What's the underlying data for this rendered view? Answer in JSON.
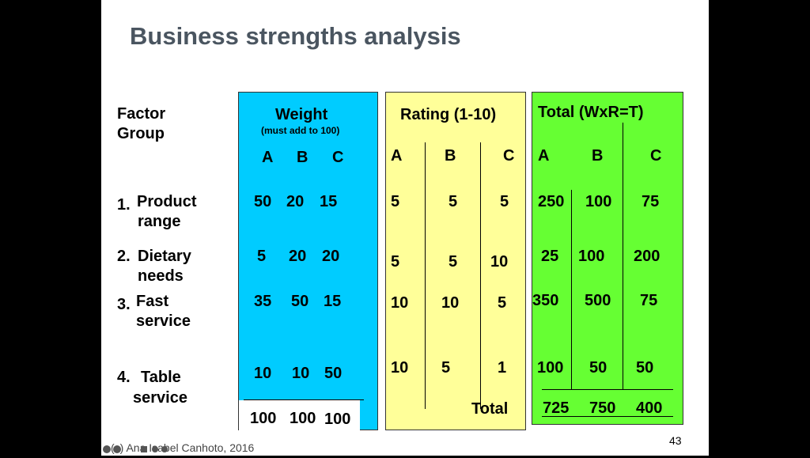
{
  "title": "Business strengths analysis",
  "factor_header": {
    "line1": "Factor",
    "line2": "Group"
  },
  "weight": {
    "title": "Weight",
    "subtitle": "(must add to 100)",
    "cols": [
      "A",
      "B",
      "C"
    ]
  },
  "rating": {
    "title": "Rating  (1-10)",
    "cols": [
      "A",
      "B",
      "C"
    ]
  },
  "total": {
    "title": "Total (WxR=T)",
    "cols": [
      "A",
      "B",
      "C"
    ]
  },
  "factors": [
    {
      "num": "1.",
      "line1": "Product",
      "line2": "range",
      "weight": [
        "50",
        "20",
        "15"
      ],
      "rating": [
        "5",
        "5",
        "5"
      ],
      "total": [
        "250",
        "100",
        "75"
      ]
    },
    {
      "num": "2.",
      "line1": "Dietary",
      "line2": "needs",
      "weight": [
        "5",
        "20",
        "20"
      ],
      "rating": [
        "5",
        "5",
        "10"
      ],
      "total": [
        "25",
        "100",
        "200"
      ]
    },
    {
      "num": "3.",
      "line1": "Fast",
      "line2": "service",
      "weight": [
        "35",
        "50",
        "15"
      ],
      "rating": [
        "10",
        "10",
        "5"
      ],
      "total": [
        "350",
        "500",
        "75"
      ]
    },
    {
      "num": "4.",
      "line1": "Table",
      "line2": "service",
      "weight": [
        "10",
        "10",
        "50"
      ],
      "rating": [
        "10",
        "5",
        "1"
      ],
      "total": [
        "100",
        "50",
        "50"
      ]
    }
  ],
  "weight_totals": [
    "100",
    "100",
    "100"
  ],
  "total_label": "Total",
  "grand_totals": [
    "725",
    "750",
    "400"
  ],
  "slide_number": "43",
  "copyright": "(c) Ana Isabel Canhoto, 2016"
}
